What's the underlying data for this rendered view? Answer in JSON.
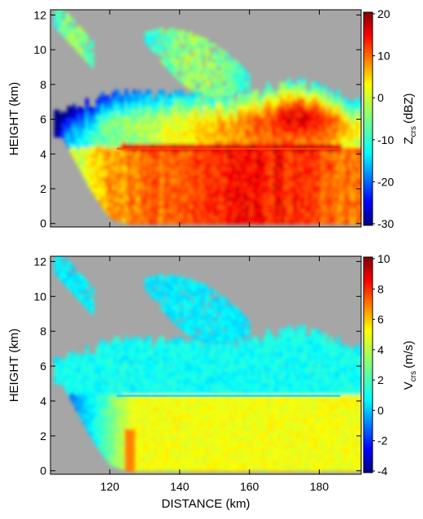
{
  "chart_data": [
    {
      "type": "heatmap",
      "panel": "top",
      "ylabel": "HEIGHT (km)",
      "xlim": [
        103,
        192
      ],
      "ylim": [
        -0.2,
        12.3
      ],
      "yticks": [
        0,
        2,
        4,
        6,
        8,
        10,
        12
      ],
      "xticks": [
        120,
        140,
        160,
        180
      ],
      "xtick_labels_shown": false,
      "background_color": "#a6a6a6",
      "colorbar": {
        "label_main": "Z",
        "label_sub": "crs",
        "label_unit": "(dBZ)",
        "range": [
          -30,
          20
        ],
        "ticks": [
          -30,
          -20,
          -10,
          0,
          10,
          20
        ]
      },
      "field": {
        "top_of_echo_km": [
          [
            106,
            6.3
          ],
          [
            110,
            6.6
          ],
          [
            115,
            7.0
          ],
          [
            120,
            7.3
          ],
          [
            125,
            7.4
          ],
          [
            130,
            7.3
          ],
          [
            135,
            7.4
          ],
          [
            140,
            7.5
          ],
          [
            145,
            7.3
          ],
          [
            150,
            7.4
          ],
          [
            155,
            7.2
          ],
          [
            160,
            7.5
          ],
          [
            165,
            7.6
          ],
          [
            170,
            7.8
          ],
          [
            175,
            8.0
          ],
          [
            180,
            7.7
          ],
          [
            185,
            7.3
          ],
          [
            190,
            6.9
          ],
          [
            192,
            7.0
          ]
        ],
        "base_of_echo_km": [
          [
            106,
            5.0
          ],
          [
            110,
            3.5
          ],
          [
            114,
            2.0
          ],
          [
            118,
            0.8
          ],
          [
            120,
            0.3
          ],
          [
            125,
            0.0
          ],
          [
            185,
            0.0
          ]
        ],
        "melting_layer_km": 4.3,
        "upper_layer_echoes_km": [
          [
            104,
            12.2,
            115,
            9.8
          ],
          [
            130,
            10.8,
            160,
            8.2
          ]
        ],
        "peak_values": {
          "core_region_km": [
            165,
            190
          ],
          "core_height_km": [
            4.5,
            7.5
          ],
          "dbz": 18
        }
      }
    },
    {
      "type": "heatmap",
      "panel": "bottom",
      "xlabel": "DISTANCE (km)",
      "ylabel": "HEIGHT (km)",
      "xlim": [
        103,
        192
      ],
      "ylim": [
        -0.2,
        12.3
      ],
      "yticks": [
        0,
        2,
        4,
        6,
        8,
        10,
        12
      ],
      "xticks": [
        120,
        140,
        160,
        180
      ],
      "background_color": "#a6a6a6",
      "colorbar": {
        "label_main": "V",
        "label_sub": "crs",
        "label_unit": "(m/s)",
        "range": [
          -4,
          10
        ],
        "ticks": [
          -4,
          -2,
          0,
          2,
          4,
          6,
          8,
          10
        ]
      },
      "field": {
        "above_melting_ms": 1.5,
        "below_melting_ms": 5.0,
        "melting_layer_km": 4.3
      }
    }
  ],
  "colors": {
    "no_data": "#a6a6a6",
    "colormap": [
      "#00007f",
      "#0000ff",
      "#007fff",
      "#00ffff",
      "#7fff7f",
      "#ffff00",
      "#ff7f00",
      "#ff0000",
      "#7f0000"
    ]
  },
  "labels": {
    "top_ylabel": "HEIGHT (km)",
    "bottom_ylabel": "HEIGHT (km)",
    "bottom_xlabel": "DISTANCE (km)",
    "cb_top_main": "Z",
    "cb_top_sub": "crs",
    "cb_top_unit": "(dBZ)",
    "cb_bot_main": "V",
    "cb_bot_sub": "crs",
    "cb_bot_unit": "(m/s)"
  }
}
